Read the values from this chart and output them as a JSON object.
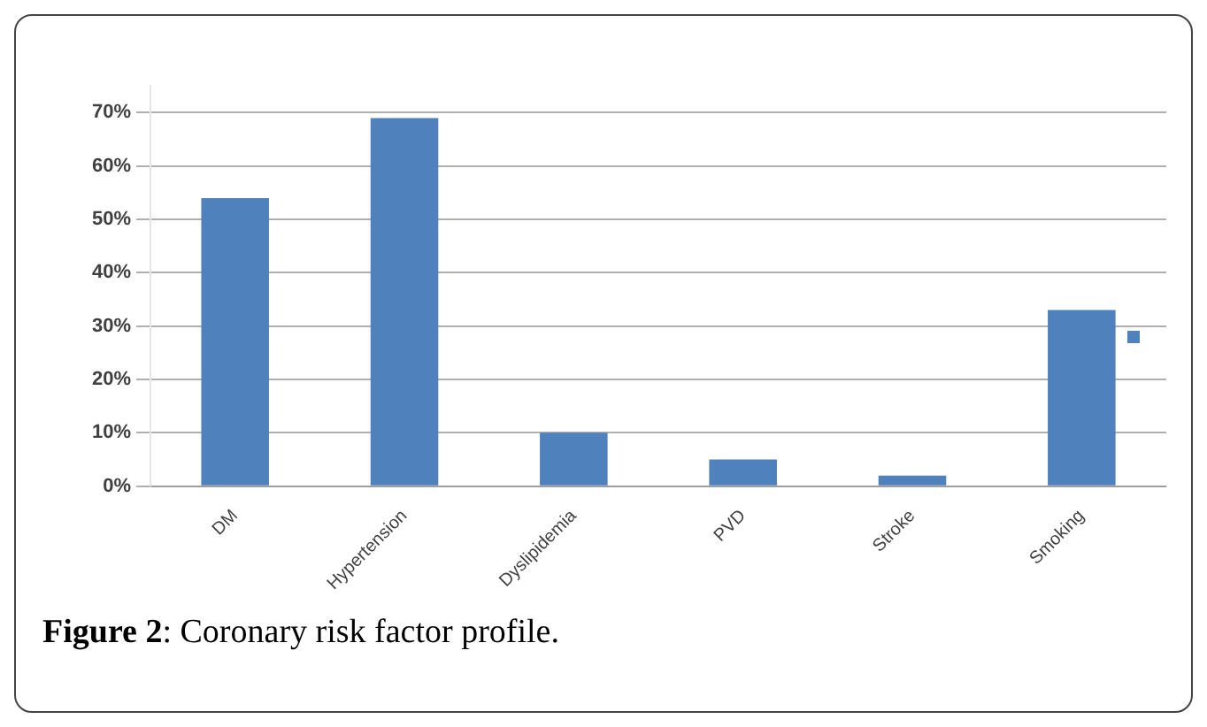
{
  "chart_data": {
    "type": "bar",
    "categories": [
      "DM",
      "Hypertension",
      "Dyslipidemia",
      "PVD",
      "Stroke",
      "Smoking"
    ],
    "series": [
      {
        "color": "#4f81bd",
        "values": [
          54,
          69,
          10,
          5,
          2,
          33
        ]
      }
    ],
    "ylim": [
      0,
      75
    ],
    "yticks": [
      {
        "value": 0,
        "label": "0%"
      },
      {
        "value": 10,
        "label": "10%"
      },
      {
        "value": 20,
        "label": "20%"
      },
      {
        "value": 30,
        "label": "30%"
      },
      {
        "value": 40,
        "label": "40%"
      },
      {
        "value": 50,
        "label": "50%"
      },
      {
        "value": 60,
        "label": "60%"
      },
      {
        "value": 70,
        "label": "70%"
      }
    ],
    "grid": "y",
    "annotations": [
      "Figure 2: Coronary risk factor profile."
    ]
  }
}
